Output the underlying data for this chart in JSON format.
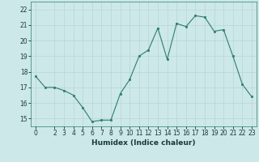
{
  "x": [
    0,
    1,
    2,
    3,
    4,
    5,
    6,
    7,
    8,
    9,
    10,
    11,
    12,
    13,
    14,
    15,
    16,
    17,
    18,
    19,
    20,
    21,
    22,
    23
  ],
  "y": [
    17.7,
    17.0,
    17.0,
    16.8,
    16.5,
    15.7,
    14.8,
    14.9,
    14.9,
    16.6,
    17.5,
    19.0,
    19.4,
    20.8,
    18.8,
    21.1,
    20.9,
    21.6,
    21.5,
    20.6,
    20.7,
    19.0,
    17.2,
    16.4
  ],
  "xlim": [
    -0.5,
    23.5
  ],
  "ylim": [
    14.5,
    22.5
  ],
  "yticks": [
    15,
    16,
    17,
    18,
    19,
    20,
    21,
    22
  ],
  "xticks": [
    0,
    2,
    3,
    4,
    5,
    6,
    7,
    8,
    9,
    10,
    11,
    12,
    13,
    14,
    15,
    16,
    17,
    18,
    19,
    20,
    21,
    22,
    23
  ],
  "xlabel": "Humidex (Indice chaleur)",
  "line_color": "#2e7d6e",
  "marker_color": "#2e7d6e",
  "bg_color": "#cce8e8",
  "grid_color": "#b8d4d4",
  "tick_fontsize": 5.5,
  "xlabel_fontsize": 6.5
}
